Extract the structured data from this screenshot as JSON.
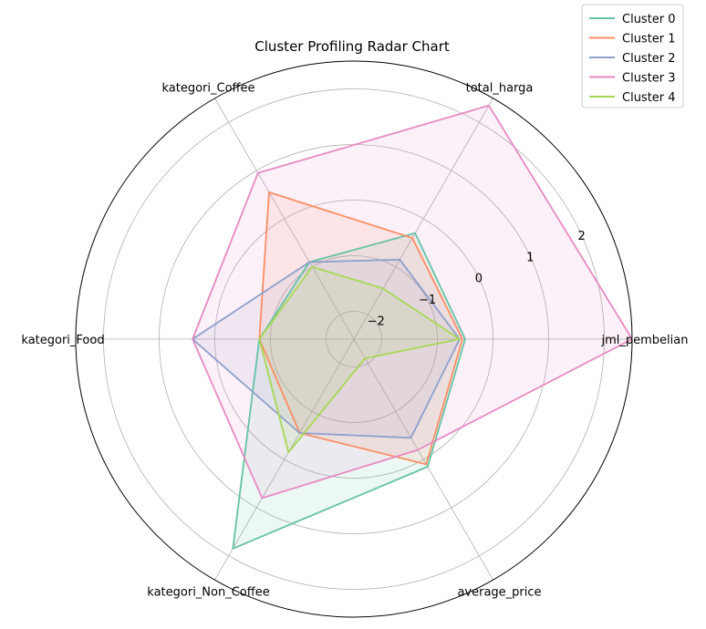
{
  "chart_data": {
    "type": "radar",
    "title": "Cluster Profiling Radar Chart",
    "axes": [
      "jml_pembelian",
      "total_harga",
      "kategori_Coffee",
      "kategori_Food",
      "kategori_Non_Coffee",
      "average_price"
    ],
    "rlim": [
      -2.5,
      2.5
    ],
    "r_ticks": [
      -2,
      -1,
      0,
      1,
      2
    ],
    "r_tick_labels": [
      "−2",
      "−1",
      "0",
      "1",
      "2"
    ],
    "grid": true,
    "legend_position": "top-right",
    "series": [
      {
        "name": "Cluster 0",
        "color": "#66c2a5",
        "values": [
          -0.5,
          -0.3,
          -0.9,
          -0.8,
          1.85,
          0.15
        ]
      },
      {
        "name": "Cluster 1",
        "color": "#fc8d62",
        "values": [
          -0.55,
          -0.4,
          0.55,
          -0.8,
          -0.55,
          0.1
        ]
      },
      {
        "name": "Cluster 2",
        "color": "#8da0cb",
        "values": [
          -0.6,
          -0.85,
          -0.9,
          0.4,
          -0.55,
          -0.45
        ]
      },
      {
        "name": "Cluster 3",
        "color": "#e78ac3",
        "values": [
          2.5,
          2.35,
          0.95,
          0.4,
          0.8,
          -0.2
        ]
      },
      {
        "name": "Cluster 4",
        "color": "#a6d854",
        "values": [
          -0.6,
          -1.45,
          -1.0,
          -0.8,
          -0.15,
          -2.1
        ]
      }
    ]
  }
}
